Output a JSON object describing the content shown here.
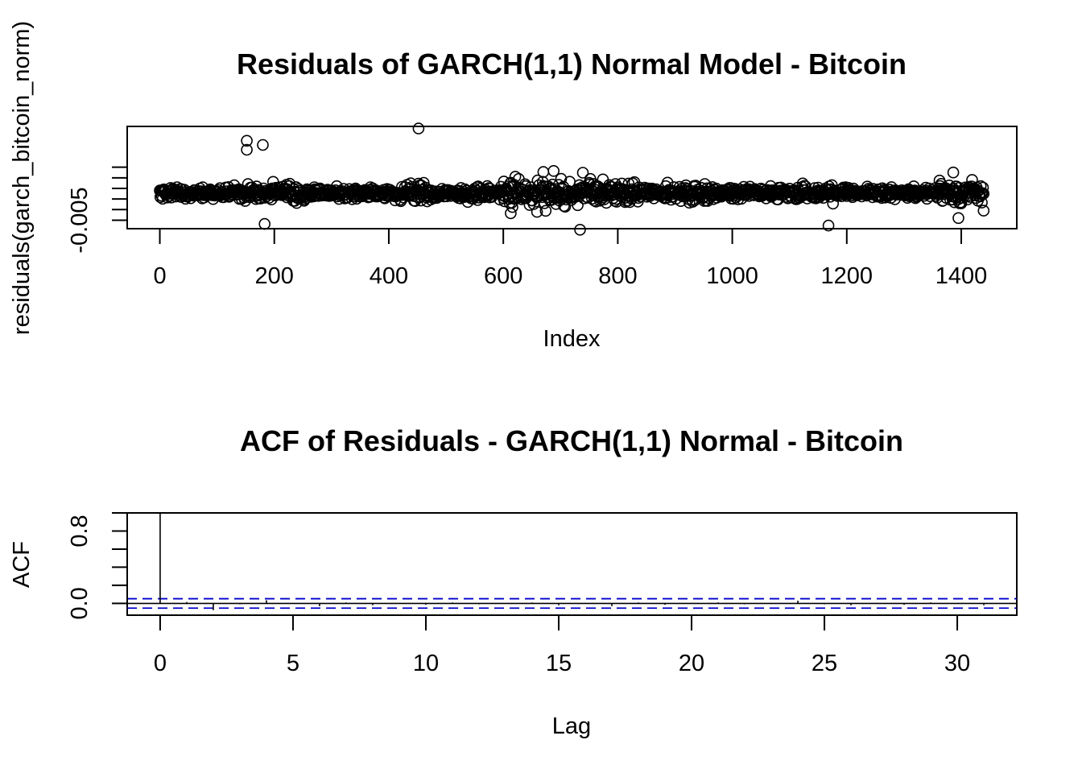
{
  "chart_data": [
    {
      "type": "scatter",
      "title": "Residuals of GARCH(1,1) Normal Model - Bitcoin",
      "xlabel": "Index",
      "ylabel": "residuals(garch_bitcoin_norm)",
      "xlim": [
        -57,
        1497
      ],
      "ylim": [
        -0.0066,
        0.0127
      ],
      "x_ticks": [
        0,
        200,
        400,
        600,
        800,
        1000,
        1200,
        1400
      ],
      "x_tick_labels": [
        "0",
        "200",
        "400",
        "600",
        "800",
        "1000",
        "1200",
        "1400"
      ],
      "y_ticks": [
        -0.005,
        -0.003,
        -0.001,
        0.001,
        0.003,
        0.005
      ],
      "y_tick_labels": [
        "-0.005",
        "",
        "",
        "",
        "",
        ""
      ],
      "n": 1440,
      "notable_points": [
        {
          "x": 152,
          "y": 0.01
        },
        {
          "x": 152,
          "y": 0.0083
        },
        {
          "x": 180,
          "y": 0.0092
        },
        {
          "x": 183,
          "y": -0.0057
        },
        {
          "x": 452,
          "y": 0.0123
        },
        {
          "x": 452,
          "y": 0.0019
        },
        {
          "x": 613,
          "y": -0.0037
        },
        {
          "x": 670,
          "y": 0.0041
        },
        {
          "x": 688,
          "y": 0.0043
        },
        {
          "x": 734,
          "y": -0.0068
        },
        {
          "x": 1168,
          "y": -0.006
        },
        {
          "x": 1386,
          "y": 0.004
        },
        {
          "x": 1395,
          "y": -0.0046
        },
        {
          "x": 1439,
          "y": -0.0032
        }
      ]
    },
    {
      "type": "bar",
      "title": "ACF of Residuals - GARCH(1,1) Normal - Bitcoin",
      "xlabel": "Lag",
      "ylabel": "ACF",
      "xlim": [
        -1.24,
        32.24
      ],
      "ylim": [
        -0.13,
        1.0
      ],
      "x_ticks": [
        0,
        5,
        10,
        15,
        20,
        25,
        30
      ],
      "x_tick_labels": [
        "0",
        "5",
        "10",
        "15",
        "20",
        "25",
        "30"
      ],
      "y_ticks": [
        0.0,
        0.2,
        0.4,
        0.6,
        0.8,
        1.0
      ],
      "y_tick_labels": [
        "0.0",
        "",
        "",
        "",
        "0.8",
        ""
      ],
      "lags": [
        0,
        1,
        2,
        3,
        4,
        5,
        6,
        7,
        8,
        9,
        10,
        11,
        12,
        13,
        14,
        15,
        16,
        17,
        18,
        19,
        20,
        21,
        22,
        23,
        24,
        25,
        26,
        27,
        28,
        29,
        30,
        31
      ],
      "acf": [
        1.0,
        0.015,
        -0.075,
        -0.01,
        0.035,
        -0.005,
        -0.03,
        0.01,
        -0.02,
        0.005,
        -0.015,
        0.01,
        -0.01,
        -0.005,
        0.01,
        -0.02,
        0.005,
        -0.03,
        0.01,
        -0.015,
        0.005,
        0.01,
        -0.01,
        -0.005,
        0.03,
        -0.01,
        -0.02,
        0.005,
        -0.015,
        0.01,
        -0.005,
        -0.02
      ],
      "conf_limit": 0.052,
      "conf_color": "#0000cc"
    }
  ]
}
